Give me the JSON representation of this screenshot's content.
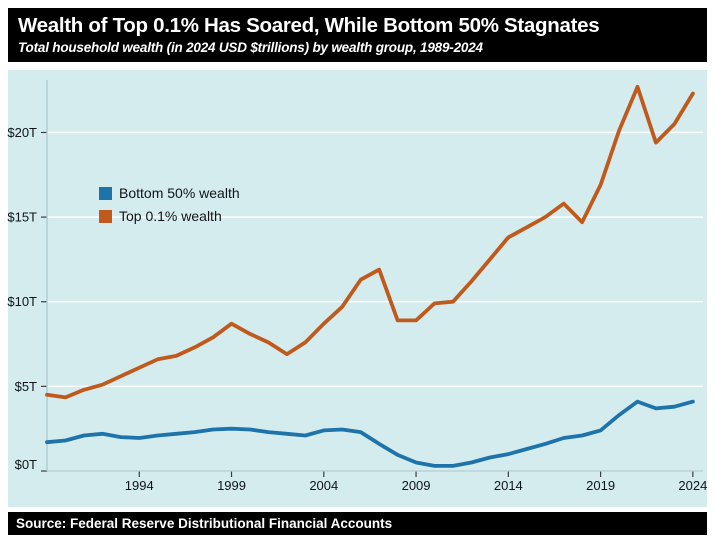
{
  "header": {
    "title": "Wealth of Top 0.1% Has Soared, While Bottom 50% Stagnates",
    "subtitle": "Total household wealth (in 2024 USD $trillions) by wealth group, 1989-2024"
  },
  "footer": {
    "source": "Source: Federal Reserve Distributional Financial Accounts"
  },
  "legend": [
    {
      "label": "Bottom 50% wealth",
      "color": "#1e73ab"
    },
    {
      "label": "Top 0.1% wealth",
      "color": "#c05a1c"
    }
  ],
  "colors": {
    "page_bg": "#ffffff",
    "bar_bg": "#000000",
    "bar_text": "#ffffff",
    "chart_bg": "#d5ecef",
    "gridline": "#ffffff",
    "spine": "#aac8cd",
    "tick": "#3c3c3c",
    "tick_label": "#101418",
    "bottom50_blue": "#1e73ab",
    "top01_orange": "#c05a1c"
  },
  "chart_data": {
    "type": "line",
    "title": "Wealth of Top 0.1% Has Soared, While Bottom 50% Stagnates",
    "subtitle": "Total household wealth (in 2024 USD $trillions) by wealth group, 1989-2024",
    "source": "Source: Federal Reserve Distributional Financial Accounts",
    "xlabel": "",
    "ylabel": "",
    "grid": true,
    "legend_position": "upper left inside",
    "xlim": [
      1989,
      2024.55
    ],
    "ylim": [
      0,
      23.1
    ],
    "xticks": [
      1994,
      1999,
      2004,
      2009,
      2014,
      2019,
      2024
    ],
    "yticks": [
      0,
      5,
      10,
      15,
      20
    ],
    "ytick_labels": [
      "$0T",
      "$5T",
      "$10T",
      "$15T",
      "$20T"
    ],
    "x": [
      1989,
      1990,
      1991,
      1992,
      1993,
      1994,
      1995,
      1996,
      1997,
      1998,
      1999,
      2000,
      2001,
      2002,
      2003,
      2004,
      2005,
      2006,
      2007,
      2008,
      2009,
      2010,
      2011,
      2012,
      2013,
      2014,
      2015,
      2016,
      2017,
      2018,
      2019,
      2020,
      2021,
      2022,
      2023,
      2024
    ],
    "series": [
      {
        "name": "Bottom 50% wealth",
        "color": "#1e73ab",
        "values": [
          1.7,
          1.8,
          2.1,
          2.2,
          2.0,
          1.95,
          2.1,
          2.2,
          2.3,
          2.45,
          2.5,
          2.45,
          2.3,
          2.2,
          2.1,
          2.4,
          2.45,
          2.3,
          1.6,
          0.95,
          0.5,
          0.3,
          0.3,
          0.5,
          0.8,
          1.0,
          1.3,
          1.6,
          1.95,
          2.1,
          2.4,
          3.3,
          4.1,
          3.7,
          3.8,
          4.1
        ]
      },
      {
        "name": "Top 0.1% wealth",
        "color": "#c05a1c",
        "values": [
          4.5,
          4.35,
          4.8,
          5.1,
          5.6,
          6.1,
          6.6,
          6.8,
          7.3,
          7.9,
          8.7,
          8.1,
          7.6,
          6.9,
          7.6,
          8.7,
          9.7,
          11.3,
          11.9,
          8.9,
          8.9,
          9.9,
          10.0,
          11.2,
          12.5,
          13.8,
          14.4,
          15.0,
          15.8,
          14.7,
          16.9,
          20.1,
          22.7,
          19.4,
          20.5,
          22.3
        ]
      }
    ]
  }
}
